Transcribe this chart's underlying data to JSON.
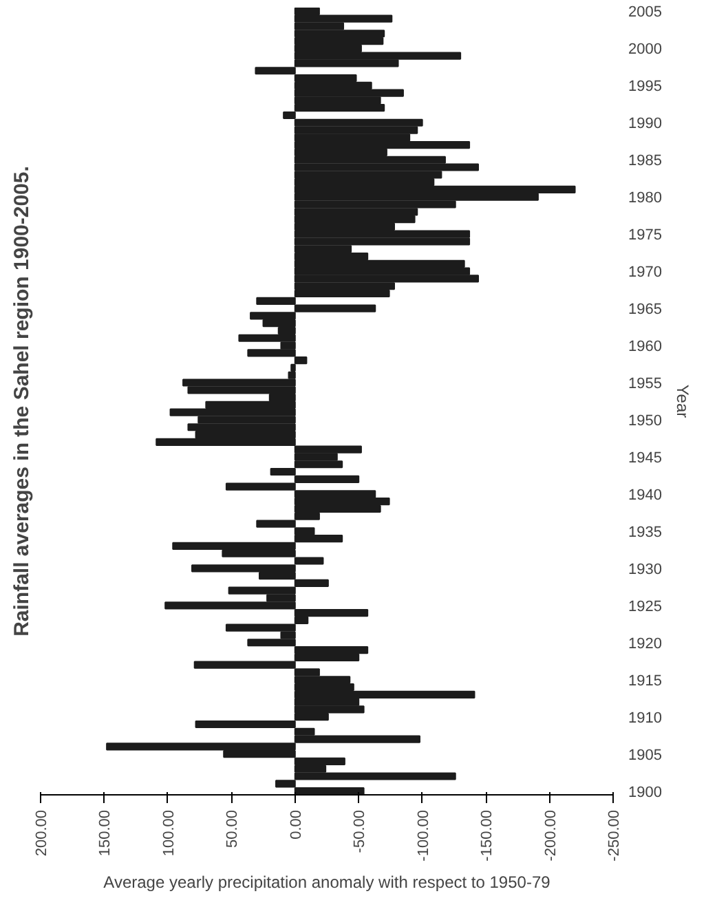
{
  "chart_data": {
    "type": "bar",
    "orientation": "horizontal",
    "title": "Rainfall averages in the Sahel region 1900-2005.",
    "xlabel": "Average yearly precipitation anomaly with respect to 1950-79",
    "ylabel": "Year",
    "categories": [
      "2005",
      null,
      null,
      null,
      null,
      "2000",
      null,
      null,
      null,
      null,
      "1995",
      null,
      null,
      null,
      null,
      "1990",
      null,
      null,
      null,
      null,
      "1985",
      null,
      null,
      null,
      null,
      "1980",
      null,
      null,
      null,
      null,
      "1975",
      null,
      null,
      null,
      null,
      "1970",
      null,
      null,
      null,
      null,
      "1965",
      null,
      null,
      null,
      null,
      "1960",
      null,
      null,
      null,
      null,
      "1955",
      null,
      null,
      null,
      null,
      "1950",
      null,
      null,
      null,
      null,
      "1945",
      null,
      null,
      null,
      null,
      "1940",
      null,
      null,
      null,
      null,
      "1935",
      null,
      null,
      null,
      null,
      "1930",
      null,
      null,
      null,
      null,
      "1925",
      null,
      null,
      null,
      null,
      "1920",
      null,
      null,
      null,
      null,
      "1915",
      null,
      null,
      null,
      null,
      "1910",
      null,
      null,
      null,
      null,
      "1905",
      null,
      null,
      null,
      null,
      "1900"
    ],
    "values": [
      -19,
      -76,
      -38,
      -70,
      -69,
      -52,
      -130,
      -81,
      31,
      -48,
      -60,
      -85,
      -67,
      -70,
      9,
      -100,
      -96,
      -90,
      -137,
      -72,
      -118,
      -144,
      -115,
      -109,
      -220,
      -191,
      -126,
      -96,
      -94,
      -78,
      -137,
      -137,
      -44,
      -57,
      -133,
      -137,
      -144,
      -78,
      -74,
      30,
      -63,
      35,
      25,
      13,
      44,
      11,
      37,
      -9,
      3,
      5,
      88,
      84,
      20,
      70,
      98,
      76,
      84,
      78,
      109,
      -52,
      -33,
      -37,
      19,
      -50,
      54,
      -63,
      -74,
      -67,
      -19,
      30,
      -15,
      -37,
      96,
      57,
      -22,
      81,
      28,
      -26,
      52,
      22,
      102,
      -57,
      -10,
      54,
      11,
      37,
      -57,
      -50,
      79,
      -19,
      -43,
      -46,
      -141,
      -50,
      -54,
      -26,
      78,
      -15,
      -98,
      148,
      56,
      -39,
      -24,
      -126,
      15,
      -54
    ],
    "color": "#1c1c1c",
    "xlim": [
      200,
      -250
    ],
    "xticks": [
      {
        "value": 200,
        "label": "200.00"
      },
      {
        "value": 150,
        "label": "150.00"
      },
      {
        "value": 100,
        "label": "100.00"
      },
      {
        "value": 50,
        "label": "50.00"
      },
      {
        "value": 0,
        "label": "0.00"
      },
      {
        "value": -50,
        "label": "-50.00"
      },
      {
        "value": -100,
        "label": "-100.00"
      },
      {
        "value": -150,
        "label": "-150.00"
      },
      {
        "value": -200,
        "label": "-200.00"
      },
      {
        "value": -250,
        "label": "-250.00"
      }
    ],
    "grid": false
  }
}
